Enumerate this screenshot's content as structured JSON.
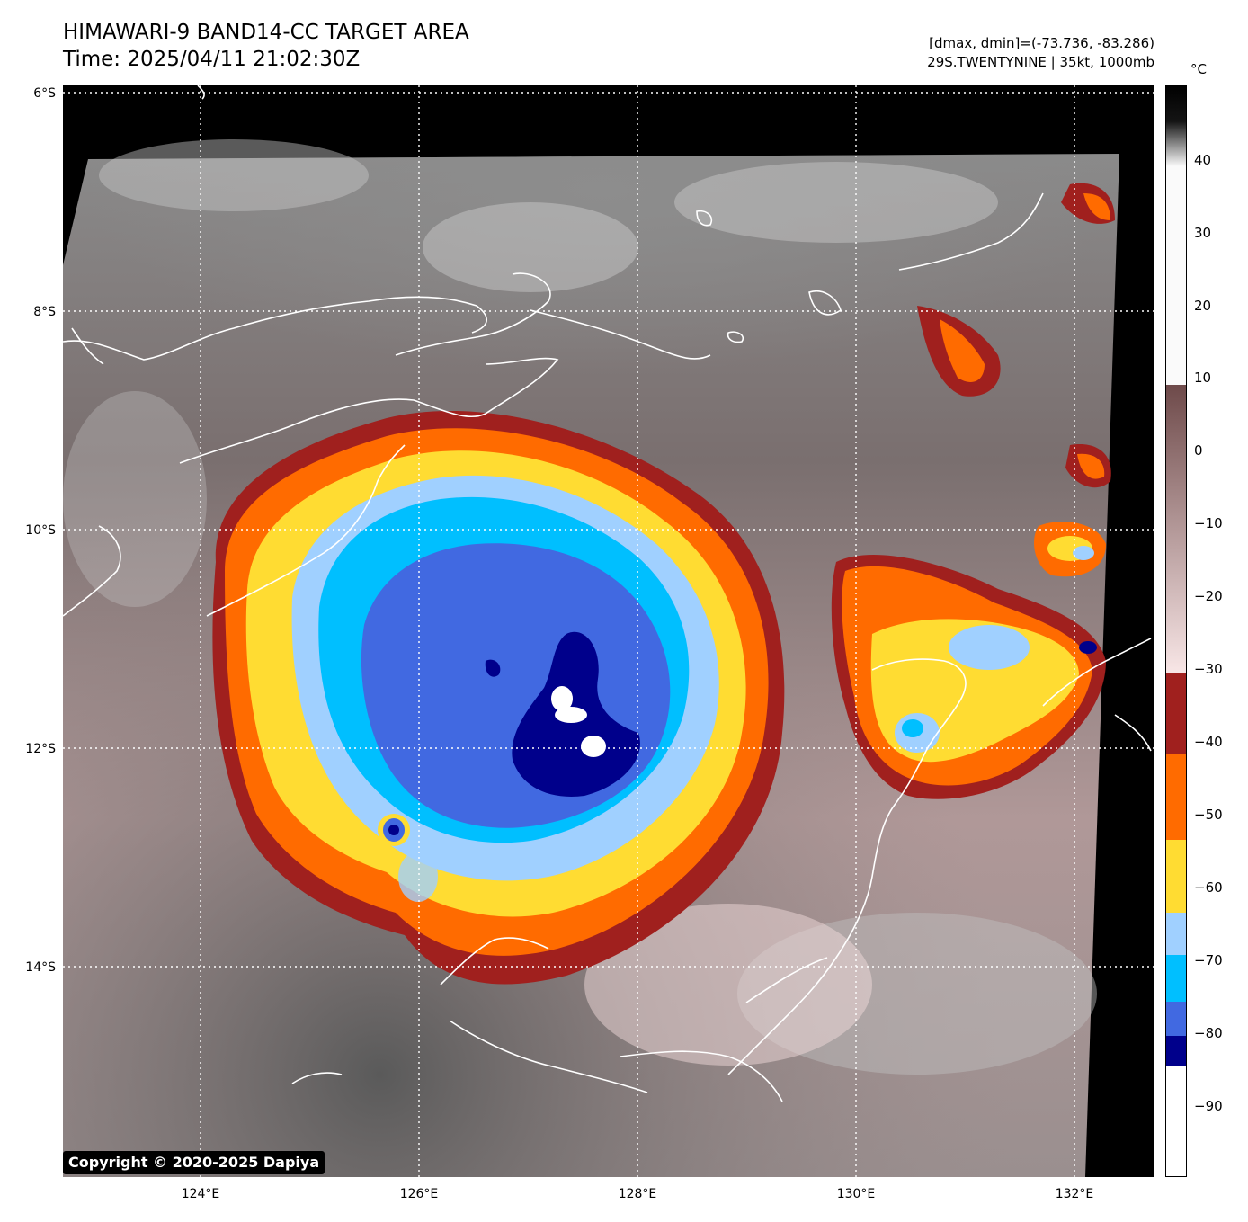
{
  "header": {
    "title_line1": "HIMAWARI-9 BAND14-CC TARGET AREA",
    "title_line2": "Time: 2025/04/11 21:02:30Z",
    "dminmax": "[dmax, dmin]=(-73.736, -83.286)",
    "storm_info": "29S.TWENTYNINE | 35kt, 1000mb"
  },
  "map": {
    "lat_labels": [
      "6°S",
      "8°S",
      "10°S",
      "12°S",
      "14°S"
    ],
    "lon_labels": [
      "124°E",
      "126°E",
      "128°E",
      "130°E",
      "132°E"
    ],
    "gridlines": "dotted white",
    "background_color": "#000000"
  },
  "colorbar": {
    "unit": "°C",
    "ticks": [
      "40",
      "30",
      "20",
      "10",
      "0",
      "−10",
      "−20",
      "−30",
      "−40",
      "−50",
      "−60",
      "−70",
      "−80",
      "−90"
    ],
    "bands": [
      {
        "range": "-30 to -40",
        "color": "#a0201e"
      },
      {
        "range": "-40 to -50",
        "color": "#ff6b00"
      },
      {
        "range": "-50 to -60",
        "color": "#ffdc32"
      },
      {
        "range": "-60 to -70",
        "color": "#a0d0ff"
      },
      {
        "range": "-70 to -80",
        "color": "#00bfff"
      },
      {
        "range": "-80 to -84",
        "color": "#4169e1"
      },
      {
        "range": "-84 to -88",
        "color": "#00008b"
      },
      {
        "range": "-88 to -100",
        "color": "#ffffff"
      }
    ]
  },
  "copyright": "Copyright © 2020-2025 Dapiya"
}
